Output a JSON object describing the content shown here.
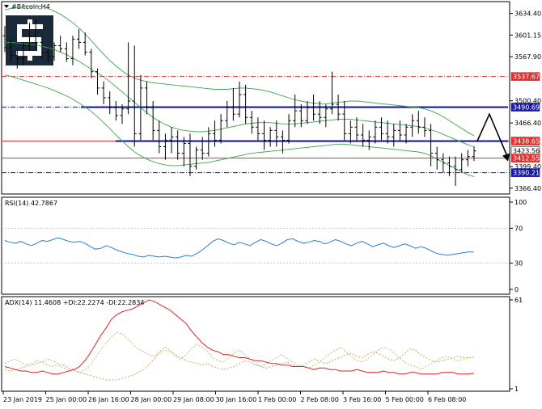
{
  "window": {
    "symbol_title": "#Bitcoin,H4"
  },
  "colors": {
    "candles": "#000000",
    "bollinger": "#3aa84a",
    "resistance_blue": "#1a1aa0",
    "level_red": "#e03030",
    "level_navy": "#1a1aa0",
    "rsi": "#2a7fd4",
    "adx": "#e02020",
    "di_plus": "#b8c470",
    "di_minus": "#d4a35a",
    "arrow": "#000000",
    "logo_bg": "#1b2a3a"
  },
  "logo": {
    "icon": "dollar-s-logo-icon"
  },
  "price_axis": {
    "ticks": [
      "3634.40",
      "3601.15",
      "3567.90",
      "3500.40",
      "3466.40",
      "3399.40",
      "3366.40"
    ],
    "min": 3360,
    "max": 3650
  },
  "price_tags": [
    {
      "id": "tag-3537",
      "label": "3537.67",
      "value": 3537.67,
      "style": "red"
    },
    {
      "id": "tag-3490",
      "label": "3490.69",
      "value": 3490.69,
      "style": "navy"
    },
    {
      "id": "tag-3438",
      "label": "3438.65",
      "value": 3438.65,
      "style": "red"
    },
    {
      "id": "tag-3423",
      "label": "3423.56",
      "value": 3423.56,
      "style": "plain"
    },
    {
      "id": "tag-3412",
      "label": "3412.55",
      "value": 3412.55,
      "style": "red"
    },
    {
      "id": "tag-3390",
      "label": "3390.21",
      "value": 3390.21,
      "style": "navy"
    }
  ],
  "rsi": {
    "title": "RSI(14) 42.7867",
    "ticks": [
      "100",
      "70",
      "30",
      "0"
    ],
    "tick_values": [
      100,
      70,
      30,
      0
    ],
    "values": [
      56,
      54,
      53,
      55,
      52,
      50,
      53,
      56,
      55,
      57,
      59,
      57,
      55,
      54,
      55,
      53,
      49,
      46,
      47,
      50,
      48,
      45,
      43,
      41,
      40,
      38,
      37,
      39,
      38,
      37,
      38,
      37,
      36,
      37,
      39,
      38,
      41,
      45,
      50,
      55,
      58,
      56,
      53,
      51,
      54,
      52,
      50,
      54,
      57,
      55,
      52,
      50,
      53,
      57,
      58,
      55,
      53,
      54,
      56,
      55,
      52,
      54,
      57,
      55,
      52,
      50,
      53,
      55,
      52,
      49,
      51,
      53,
      50,
      48,
      50,
      52,
      50,
      47,
      49,
      47,
      44,
      41,
      40,
      39,
      40,
      41,
      42,
      43,
      42.79
    ]
  },
  "adx": {
    "title": "ADX(14) 11.4608 +DI:22.2274 -DI:22.2834",
    "ticks": [
      "61",
      "1"
    ],
    "tick_values": [
      61,
      1
    ],
    "adx_values": [
      16,
      15,
      14,
      13,
      13,
      12,
      12,
      13,
      12,
      11,
      11,
      12,
      13,
      14,
      16,
      20,
      25,
      31,
      37,
      42,
      48,
      51,
      53,
      54,
      55,
      57,
      59,
      61,
      60,
      58,
      56,
      54,
      51,
      48,
      45,
      40,
      36,
      32,
      29,
      27,
      26,
      24,
      24,
      23,
      22,
      22,
      21,
      20,
      20,
      19,
      18,
      18,
      17,
      17,
      16,
      16,
      16,
      15,
      14,
      15,
      15,
      14,
      14,
      13,
      13,
      13,
      14,
      13,
      12,
      12,
      12,
      13,
      12,
      12,
      11,
      11,
      12,
      12,
      11,
      11,
      11,
      11,
      12,
      12,
      12,
      11,
      11,
      11,
      11.46
    ],
    "di_plus_values": [
      18,
      20,
      21,
      19,
      17,
      18,
      20,
      19,
      17,
      16,
      17,
      15,
      14,
      13,
      12,
      14,
      17,
      22,
      27,
      32,
      36,
      39,
      38,
      35,
      31,
      28,
      26,
      24,
      23,
      25,
      27,
      26,
      23,
      21,
      24,
      28,
      31,
      29,
      26,
      22,
      20,
      19,
      22,
      25,
      27,
      24,
      21,
      18,
      16,
      18,
      20,
      22,
      24,
      21,
      19,
      17,
      16,
      15,
      17,
      19,
      22,
      25,
      27,
      29,
      26,
      23,
      20,
      19,
      21,
      24,
      27,
      29,
      28,
      25,
      22,
      19,
      17,
      16,
      14,
      16,
      18,
      20,
      22,
      23,
      21,
      20,
      21,
      22,
      22.23
    ],
    "di_minus_values": [
      14,
      13,
      14,
      15,
      16,
      17,
      18,
      19,
      21,
      20,
      18,
      17,
      15,
      14,
      12,
      11,
      10,
      9,
      8,
      7,
      7,
      7,
      8,
      9,
      10,
      12,
      14,
      17,
      21,
      26,
      29,
      27,
      24,
      22,
      20,
      19,
      18,
      17,
      18,
      16,
      15,
      14,
      15,
      16,
      18,
      20,
      19,
      17,
      16,
      15,
      16,
      17,
      18,
      19,
      17,
      16,
      17,
      19,
      21,
      20,
      18,
      19,
      21,
      22,
      24,
      25,
      23,
      22,
      24,
      26,
      25,
      23,
      21,
      20,
      22,
      25,
      28,
      27,
      24,
      22,
      20,
      19,
      20,
      21,
      22,
      23,
      22,
      22,
      22.28
    ]
  },
  "time_axis": {
    "labels": [
      "23 Jan 2019",
      "25 Jan 00:00",
      "26 Jan 16:00",
      "28 Jan 00:00",
      "29 Jan 08:00",
      "30 Jan 16:00",
      "1 Feb 00:00",
      "2 Feb 08:00",
      "3 Feb 16:00",
      "5 Feb 00:00",
      "6 Feb 08:00"
    ]
  },
  "chart_data": {
    "type": "candlestick",
    "symbol": "#Bitcoin",
    "timeframe": "H4",
    "ylim": [
      3360,
      3650
    ],
    "candles": [
      [
        3600,
        3615,
        3575,
        3582
      ],
      [
        3582,
        3595,
        3560,
        3570
      ],
      [
        3570,
        3580,
        3550,
        3565
      ],
      [
        3565,
        3590,
        3555,
        3585
      ],
      [
        3585,
        3620,
        3578,
        3600
      ],
      [
        3600,
        3625,
        3580,
        3590
      ],
      [
        3590,
        3600,
        3565,
        3575
      ],
      [
        3575,
        3580,
        3560,
        3568
      ],
      [
        3568,
        3590,
        3562,
        3585
      ],
      [
        3585,
        3600,
        3575,
        3580
      ],
      [
        3580,
        3590,
        3560,
        3565
      ],
      [
        3565,
        3600,
        3555,
        3595
      ],
      [
        3595,
        3610,
        3580,
        3590
      ],
      [
        3590,
        3605,
        3570,
        3575
      ],
      [
        3575,
        3580,
        3535,
        3545
      ],
      [
        3545,
        3550,
        3510,
        3520
      ],
      [
        3520,
        3530,
        3495,
        3505
      ],
      [
        3505,
        3515,
        3480,
        3490
      ],
      [
        3490,
        3500,
        3470,
        3478
      ],
      [
        3478,
        3495,
        3465,
        3488
      ],
      [
        3488,
        3590,
        3480,
        3500
      ],
      [
        3500,
        3585,
        3430,
        3450
      ],
      [
        3450,
        3540,
        3440,
        3520
      ],
      [
        3520,
        3530,
        3480,
        3490
      ],
      [
        3490,
        3500,
        3440,
        3455
      ],
      [
        3455,
        3470,
        3420,
        3430
      ],
      [
        3430,
        3450,
        3410,
        3440
      ],
      [
        3440,
        3460,
        3420,
        3445
      ],
      [
        3445,
        3455,
        3410,
        3420
      ],
      [
        3420,
        3445,
        3400,
        3435
      ],
      [
        3435,
        3450,
        3385,
        3400
      ],
      [
        3400,
        3430,
        3395,
        3425
      ],
      [
        3425,
        3445,
        3410,
        3420
      ],
      [
        3420,
        3460,
        3415,
        3450
      ],
      [
        3450,
        3470,
        3430,
        3440
      ],
      [
        3440,
        3480,
        3435,
        3470
      ],
      [
        3470,
        3500,
        3460,
        3490
      ],
      [
        3490,
        3520,
        3470,
        3480
      ],
      [
        3480,
        3530,
        3475,
        3510
      ],
      [
        3510,
        3525,
        3465,
        3475
      ],
      [
        3475,
        3485,
        3450,
        3460
      ],
      [
        3460,
        3475,
        3440,
        3450
      ],
      [
        3450,
        3470,
        3425,
        3440
      ],
      [
        3440,
        3460,
        3430,
        3455
      ],
      [
        3455,
        3470,
        3430,
        3445
      ],
      [
        3445,
        3455,
        3420,
        3440
      ],
      [
        3440,
        3480,
        3435,
        3470
      ],
      [
        3470,
        3510,
        3460,
        3485
      ],
      [
        3485,
        3495,
        3460,
        3470
      ],
      [
        3470,
        3500,
        3465,
        3490
      ],
      [
        3490,
        3510,
        3470,
        3480
      ],
      [
        3480,
        3500,
        3465,
        3475
      ],
      [
        3475,
        3495,
        3460,
        3488
      ],
      [
        3488,
        3545,
        3480,
        3495
      ],
      [
        3495,
        3510,
        3470,
        3480
      ],
      [
        3480,
        3500,
        3440,
        3450
      ],
      [
        3450,
        3470,
        3435,
        3460
      ],
      [
        3460,
        3475,
        3440,
        3448
      ],
      [
        3448,
        3465,
        3430,
        3440
      ],
      [
        3440,
        3455,
        3425,
        3445
      ],
      [
        3445,
        3470,
        3435,
        3460
      ],
      [
        3460,
        3475,
        3440,
        3450
      ],
      [
        3450,
        3470,
        3435,
        3445
      ],
      [
        3445,
        3465,
        3430,
        3455
      ],
      [
        3455,
        3470,
        3440,
        3448
      ],
      [
        3448,
        3465,
        3435,
        3460
      ],
      [
        3460,
        3480,
        3445,
        3470
      ],
      [
        3470,
        3485,
        3450,
        3460
      ],
      [
        3460,
        3475,
        3445,
        3455
      ],
      [
        3455,
        3465,
        3400,
        3420
      ],
      [
        3420,
        3430,
        3395,
        3410
      ],
      [
        3410,
        3420,
        3390,
        3405
      ],
      [
        3405,
        3415,
        3385,
        3400
      ],
      [
        3400,
        3415,
        3370,
        3395
      ],
      [
        3395,
        3420,
        3390,
        3410
      ],
      [
        3410,
        3425,
        3400,
        3415
      ],
      [
        3415,
        3430,
        3408,
        3423.56
      ]
    ],
    "bollinger_upper": [
      3640,
      3642,
      3643,
      3644,
      3645,
      3646,
      3645,
      3642,
      3638,
      3633,
      3627,
      3620,
      3612,
      3603,
      3593,
      3582,
      3572,
      3562,
      3554,
      3546,
      3540,
      3535,
      3532,
      3530,
      3528,
      3527,
      3526,
      3525,
      3524,
      3523,
      3522,
      3521,
      3520,
      3519,
      3518,
      3518,
      3518,
      3519,
      3520,
      3520,
      3519,
      3518,
      3516,
      3514,
      3511,
      3508,
      3505,
      3502,
      3500,
      3498,
      3497,
      3496,
      3496,
      3497,
      3498,
      3499,
      3500,
      3500,
      3499,
      3498,
      3497,
      3496,
      3495,
      3494,
      3493,
      3492,
      3491,
      3490,
      3488,
      3485,
      3481,
      3476,
      3470,
      3464,
      3458,
      3452,
      3447
    ],
    "bollinger_mid": [
      3590,
      3590,
      3589,
      3588,
      3587,
      3586,
      3584,
      3582,
      3579,
      3575,
      3571,
      3566,
      3561,
      3555,
      3549,
      3543,
      3537,
      3530,
      3522,
      3514,
      3506,
      3498,
      3490,
      3482,
      3475,
      3469,
      3464,
      3460,
      3457,
      3455,
      3454,
      3453,
      3453,
      3454,
      3455,
      3457,
      3459,
      3461,
      3463,
      3465,
      3466,
      3467,
      3467,
      3467,
      3466,
      3465,
      3465,
      3465,
      3466,
      3467,
      3468,
      3469,
      3470,
      3471,
      3472,
      3472,
      3472,
      3471,
      3470,
      3469,
      3468,
      3467,
      3466,
      3465,
      3464,
      3463,
      3462,
      3461,
      3459,
      3456,
      3453,
      3449,
      3445,
      3441,
      3437,
      3433,
      3430
    ],
    "bollinger_lower": [
      3540,
      3538,
      3535,
      3532,
      3529,
      3526,
      3523,
      3520,
      3516,
      3512,
      3508,
      3503,
      3497,
      3491,
      3484,
      3476,
      3467,
      3458,
      3448,
      3439,
      3430,
      3422,
      3416,
      3411,
      3407,
      3404,
      3402,
      3401,
      3401,
      3402,
      3403,
      3404,
      3405,
      3406,
      3408,
      3410,
      3412,
      3414,
      3416,
      3418,
      3420,
      3421,
      3422,
      3423,
      3424,
      3425,
      3426,
      3427,
      3428,
      3429,
      3430,
      3431,
      3432,
      3433,
      3434,
      3434,
      3433,
      3432,
      3431,
      3430,
      3429,
      3428,
      3427,
      3426,
      3425,
      3424,
      3423,
      3422,
      3420,
      3416,
      3411,
      3406,
      3401,
      3396,
      3391,
      3387,
      3384
    ],
    "levels": [
      3537.67,
      3490.69,
      3438.65,
      3412.55,
      3390.21
    ],
    "forecast_path": [
      3438.65,
      3480,
      3412.55
    ]
  }
}
